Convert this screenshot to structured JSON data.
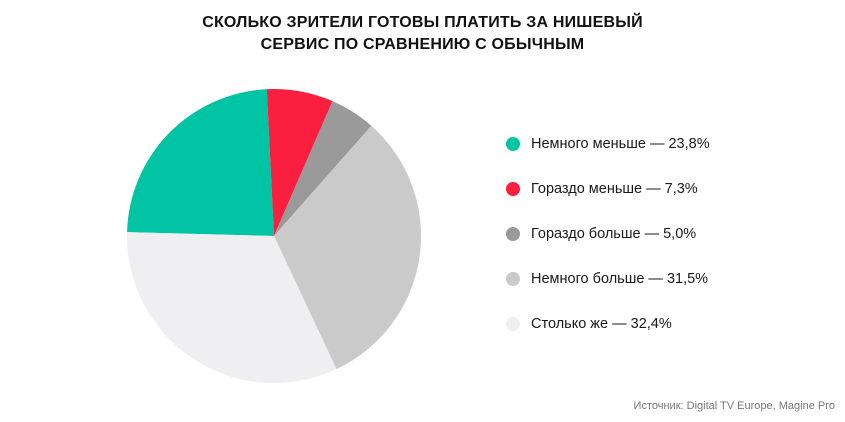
{
  "title": {
    "line1": "СКОЛЬКО ЗРИТЕЛИ ГОТОВЫ ПЛАТИТЬ ЗА НИШЕВЫЙ",
    "line2": "СЕРВИС ПО СРАВНЕНИЮ С ОБЫЧНЫМ"
  },
  "legend": {
    "items": [
      {
        "label": "Немного меньше — 23,8%",
        "color": "#00c4a3"
      },
      {
        "label": "Гораздо меньше — 7,3%",
        "color": "#fa1e3f"
      },
      {
        "label": "Гораздо больше — 5,0%",
        "color": "#9a9a9a"
      },
      {
        "label": "Немного больше — 31,5%",
        "color": "#cacaca"
      },
      {
        "label": "Столько же — 32,4%",
        "color": "#efeff2"
      }
    ]
  },
  "source": "Источник: Digital TV Europe, Magine Pro",
  "chart_data": {
    "type": "pie",
    "title": "СКОЛЬКО ЗРИТЕЛИ ГОТОВЫ ПЛАТИТЬ ЗА НИШЕВЫЙ СЕРВИС ПО СРАВНЕНИЮ С ОБЫЧНЫМ",
    "categories": [
      "Немного меньше",
      "Гораздо меньше",
      "Гораздо больше",
      "Немного больше",
      "Столько же"
    ],
    "values": [
      23.8,
      7.3,
      5.0,
      31.5,
      32.4
    ],
    "colors": [
      "#00c4a3",
      "#fa1e3f",
      "#9a9a9a",
      "#cacaca",
      "#efeff2"
    ],
    "legend_position": "right"
  }
}
